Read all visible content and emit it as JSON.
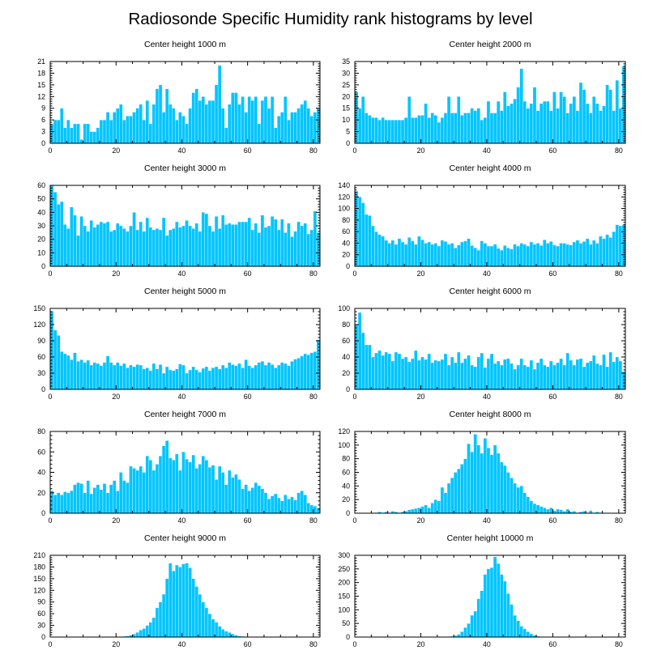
{
  "title": "Radiosonde Specific Humidity rank histograms by level",
  "colors": {
    "bar": "#00C5FF",
    "axis": "#000000",
    "background": "#FFFFFF"
  },
  "chart_data": [
    {
      "type": "bar",
      "title": "Center height 1000 m",
      "xlim": [
        0,
        82
      ],
      "ylim": [
        0,
        21
      ],
      "xticks": [
        0,
        20,
        40,
        60,
        80
      ],
      "yticks": [
        0,
        3,
        6,
        9,
        12,
        15,
        18,
        21
      ],
      "values": [
        5,
        6,
        6,
        9,
        4,
        6,
        4,
        5,
        5,
        1,
        5,
        5,
        3,
        3,
        4,
        6,
        6,
        8,
        6,
        8,
        9,
        10,
        6,
        7,
        7,
        8,
        9,
        10,
        6,
        11,
        5,
        10,
        14,
        15,
        8,
        14,
        10,
        9,
        6,
        8,
        7,
        5,
        9,
        13,
        14,
        11,
        12,
        10,
        11,
        11,
        15,
        20,
        9,
        4,
        10,
        13,
        13,
        10,
        12,
        8,
        12,
        11,
        12,
        5,
        11,
        12,
        9,
        12,
        4,
        7,
        8,
        12,
        6,
        8,
        8,
        9,
        10,
        11,
        9,
        7,
        8,
        9
      ]
    },
    {
      "type": "bar",
      "title": "Center height 2000 m",
      "xlim": [
        0,
        82
      ],
      "ylim": [
        0,
        35
      ],
      "xticks": [
        0,
        20,
        40,
        60,
        80
      ],
      "yticks": [
        0,
        5,
        10,
        15,
        20,
        25,
        30,
        35
      ],
      "values": [
        22,
        15,
        20,
        13,
        12,
        11,
        11,
        10,
        11,
        10,
        10,
        10,
        10,
        10,
        10,
        11,
        20,
        11,
        11,
        12,
        12,
        17,
        11,
        13,
        12,
        9,
        11,
        13,
        20,
        13,
        13,
        20,
        12,
        13,
        13,
        15,
        14,
        15,
        10,
        11,
        18,
        13,
        13,
        18,
        14,
        22,
        16,
        17,
        19,
        24,
        32,
        18,
        15,
        17,
        24,
        14,
        17,
        18,
        18,
        14,
        22,
        15,
        22,
        20,
        13,
        17,
        20,
        14,
        26,
        23,
        17,
        13,
        20,
        17,
        14,
        16,
        25,
        23,
        14,
        27,
        15,
        33
      ]
    },
    {
      "type": "bar",
      "title": "Center height 3000 m",
      "xlim": [
        0,
        82
      ],
      "ylim": [
        0,
        60
      ],
      "xticks": [
        0,
        20,
        40,
        60,
        80
      ],
      "yticks": [
        0,
        10,
        20,
        30,
        40,
        50,
        60
      ],
      "values": [
        60,
        55,
        46,
        48,
        31,
        28,
        44,
        38,
        23,
        37,
        30,
        26,
        34,
        29,
        31,
        33,
        32,
        33,
        26,
        27,
        32,
        30,
        28,
        26,
        30,
        40,
        27,
        33,
        26,
        36,
        29,
        27,
        28,
        27,
        36,
        23,
        27,
        28,
        33,
        29,
        30,
        34,
        30,
        28,
        32,
        26,
        40,
        39,
        30,
        26,
        37,
        28,
        38,
        31,
        32,
        31,
        31,
        33,
        33,
        33,
        36,
        27,
        32,
        25,
        38,
        29,
        30,
        37,
        35,
        27,
        35,
        25,
        32,
        22,
        26,
        33,
        30,
        32,
        24,
        27,
        41,
        25
      ]
    },
    {
      "type": "bar",
      "title": "Center height 4000 m",
      "xlim": [
        0,
        82
      ],
      "ylim": [
        0,
        140
      ],
      "xticks": [
        0,
        20,
        40,
        60,
        80
      ],
      "yticks": [
        0,
        20,
        40,
        60,
        80,
        100,
        120,
        140
      ],
      "values": [
        130,
        120,
        110,
        90,
        88,
        70,
        60,
        55,
        52,
        45,
        40,
        45,
        38,
        48,
        42,
        38,
        50,
        44,
        38,
        52,
        46,
        40,
        42,
        38,
        40,
        35,
        45,
        43,
        38,
        40,
        32,
        37,
        42,
        44,
        48,
        36,
        32,
        28,
        44,
        40,
        35,
        35,
        38,
        31,
        28,
        36,
        32,
        30,
        38,
        35,
        40,
        38,
        35,
        42,
        38,
        40,
        36,
        46,
        40,
        43,
        37,
        35,
        40,
        40,
        38,
        37,
        42,
        45,
        40,
        43,
        48,
        38,
        45,
        40,
        52,
        48,
        55,
        50,
        60,
        72,
        70,
        72
      ]
    },
    {
      "type": "bar",
      "title": "Center height 5000 m",
      "xlim": [
        0,
        82
      ],
      "ylim": [
        0,
        150
      ],
      "xticks": [
        0,
        20,
        40,
        60,
        80
      ],
      "yticks": [
        0,
        30,
        60,
        90,
        120,
        150
      ],
      "values": [
        145,
        110,
        100,
        70,
        66,
        63,
        55,
        68,
        52,
        55,
        50,
        54,
        45,
        50,
        48,
        44,
        50,
        62,
        50,
        45,
        50,
        44,
        48,
        40,
        45,
        42,
        46,
        45,
        38,
        40,
        35,
        48,
        38,
        46,
        30,
        42,
        36,
        35,
        38,
        47,
        45,
        30,
        36,
        42,
        36,
        32,
        39,
        42,
        35,
        40,
        42,
        38,
        45,
        40,
        50,
        46,
        44,
        48,
        40,
        55,
        44,
        40,
        45,
        50,
        52,
        45,
        50,
        46,
        40,
        45,
        50,
        48,
        44,
        52,
        56,
        58,
        62,
        66,
        64,
        68,
        70,
        92
      ]
    },
    {
      "type": "bar",
      "title": "Center height 6000 m",
      "xlim": [
        0,
        82
      ],
      "ylim": [
        0,
        100
      ],
      "xticks": [
        0,
        20,
        40,
        60,
        80
      ],
      "yticks": [
        0,
        20,
        40,
        60,
        80,
        100
      ],
      "values": [
        80,
        95,
        70,
        55,
        55,
        40,
        45,
        48,
        42,
        46,
        44,
        35,
        46,
        44,
        38,
        40,
        34,
        38,
        48,
        36,
        40,
        37,
        44,
        33,
        36,
        35,
        37,
        44,
        30,
        40,
        33,
        46,
        33,
        38,
        42,
        30,
        28,
        40,
        45,
        27,
        38,
        44,
        32,
        35,
        30,
        37,
        38,
        32,
        25,
        30,
        38,
        30,
        28,
        36,
        25,
        33,
        38,
        30,
        28,
        35,
        30,
        33,
        38,
        30,
        45,
        36,
        30,
        37,
        38,
        28,
        33,
        35,
        42,
        32,
        30,
        43,
        28,
        46,
        34,
        40,
        35,
        22
      ]
    },
    {
      "type": "bar",
      "title": "Center height 7000 m",
      "xlim": [
        0,
        82
      ],
      "ylim": [
        0,
        80
      ],
      "xticks": [
        0,
        20,
        40,
        60,
        80
      ],
      "yticks": [
        0,
        20,
        40,
        60,
        80
      ],
      "values": [
        22,
        18,
        20,
        18,
        21,
        20,
        22,
        28,
        30,
        29,
        20,
        32,
        19,
        25,
        28,
        23,
        29,
        20,
        28,
        32,
        22,
        40,
        32,
        30,
        46,
        44,
        42,
        46,
        40,
        56,
        52,
        42,
        48,
        56,
        66,
        71,
        54,
        52,
        58,
        42,
        60,
        53,
        50,
        57,
        44,
        48,
        56,
        52,
        45,
        47,
        33,
        46,
        40,
        28,
        42,
        35,
        38,
        33,
        24,
        28,
        22,
        25,
        30,
        27,
        24,
        20,
        14,
        17,
        19,
        15,
        12,
        18,
        14,
        16,
        13,
        20,
        22,
        18,
        10,
        8,
        7,
        5
      ]
    },
    {
      "type": "bar",
      "title": "Center height 8000 m",
      "xlim": [
        0,
        82
      ],
      "ylim": [
        0,
        120
      ],
      "xticks": [
        0,
        20,
        40,
        60,
        80
      ],
      "yticks": [
        0,
        20,
        40,
        60,
        80,
        100,
        120
      ],
      "values": [
        0,
        0,
        0,
        0,
        0,
        0,
        1,
        2,
        1,
        2,
        1,
        3,
        2,
        1,
        2,
        3,
        5,
        6,
        7,
        8,
        10,
        12,
        8,
        15,
        20,
        18,
        38,
        30,
        44,
        52,
        60,
        65,
        72,
        80,
        102,
        90,
        116,
        100,
        88,
        110,
        96,
        86,
        100,
        88,
        75,
        70,
        60,
        52,
        44,
        38,
        40,
        30,
        24,
        18,
        14,
        12,
        10,
        8,
        6,
        8,
        4,
        6,
        5,
        3,
        6,
        2,
        3,
        1,
        2,
        3,
        1,
        4,
        1,
        2,
        1,
        1,
        0,
        0,
        0,
        0,
        0,
        0
      ]
    },
    {
      "type": "bar",
      "title": "Center height 9000 m",
      "xlim": [
        0,
        82
      ],
      "ylim": [
        0,
        210
      ],
      "xticks": [
        0,
        20,
        40,
        60,
        80
      ],
      "yticks": [
        0,
        30,
        60,
        90,
        120,
        150,
        180,
        210
      ],
      "values": [
        0,
        0,
        0,
        0,
        0,
        0,
        0,
        0,
        0,
        0,
        0,
        0,
        0,
        0,
        0,
        0,
        0,
        0,
        0,
        0,
        0,
        1,
        2,
        3,
        5,
        8,
        12,
        18,
        22,
        30,
        38,
        50,
        75,
        90,
        110,
        150,
        190,
        170,
        185,
        180,
        188,
        190,
        178,
        150,
        130,
        110,
        90,
        75,
        60,
        46,
        38,
        28,
        20,
        15,
        12,
        8,
        5,
        3,
        2,
        1,
        0,
        0,
        0,
        0,
        0,
        0,
        0,
        0,
        0,
        0,
        0,
        0,
        0,
        0,
        0,
        0,
        0,
        0,
        0,
        0,
        0,
        0
      ]
    },
    {
      "type": "bar",
      "title": "Center height 10000 m",
      "xlim": [
        0,
        82
      ],
      "ylim": [
        0,
        300
      ],
      "xticks": [
        0,
        20,
        40,
        60,
        80
      ],
      "yticks": [
        0,
        50,
        100,
        150,
        200,
        250,
        300
      ],
      "values": [
        0,
        0,
        0,
        0,
        0,
        0,
        0,
        0,
        0,
        0,
        0,
        0,
        0,
        0,
        0,
        0,
        0,
        0,
        0,
        0,
        0,
        0,
        0,
        0,
        0,
        0,
        0,
        1,
        2,
        3,
        5,
        10,
        20,
        35,
        50,
        80,
        95,
        140,
        170,
        230,
        250,
        255,
        295,
        270,
        230,
        205,
        160,
        120,
        80,
        60,
        40,
        30,
        20,
        12,
        6,
        3,
        1,
        0,
        0,
        0,
        0,
        0,
        0,
        0,
        0,
        0,
        0,
        0,
        0,
        0,
        0,
        0,
        0,
        0,
        0,
        0,
        0,
        0,
        0,
        0,
        0,
        0
      ]
    }
  ]
}
